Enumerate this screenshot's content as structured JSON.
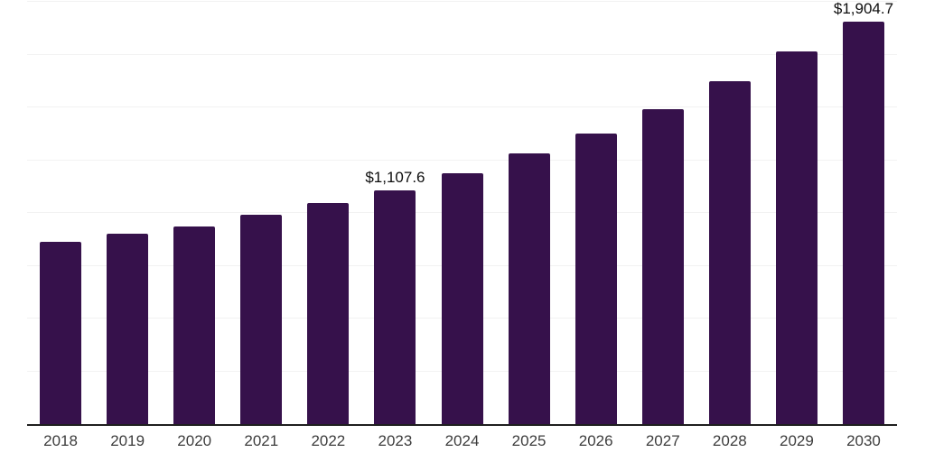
{
  "chart_data": {
    "type": "bar",
    "title": "",
    "xlabel": "",
    "ylabel": "",
    "categories": [
      "2018",
      "2019",
      "2020",
      "2021",
      "2022",
      "2023",
      "2024",
      "2025",
      "2026",
      "2027",
      "2028",
      "2029",
      "2030"
    ],
    "values": [
      862,
      901,
      936,
      991,
      1048,
      1107.6,
      1190,
      1280,
      1378,
      1490,
      1623,
      1766,
      1904.7
    ],
    "data_labels": {
      "2023": "$1,107.6",
      "2030": "$1,904.7"
    },
    "ylim": [
      0,
      2000
    ],
    "grid_interval": 250,
    "grid": "horizontal",
    "y_axis_labels": "none",
    "legend": "none",
    "colors": {
      "bar": "#36114B",
      "gridline": "#f2f2f2",
      "axis_line": "#1f1f1f",
      "tick_label": "#3d3d3d",
      "data_label": "#0d0d0d",
      "background": "#ffffff"
    }
  }
}
